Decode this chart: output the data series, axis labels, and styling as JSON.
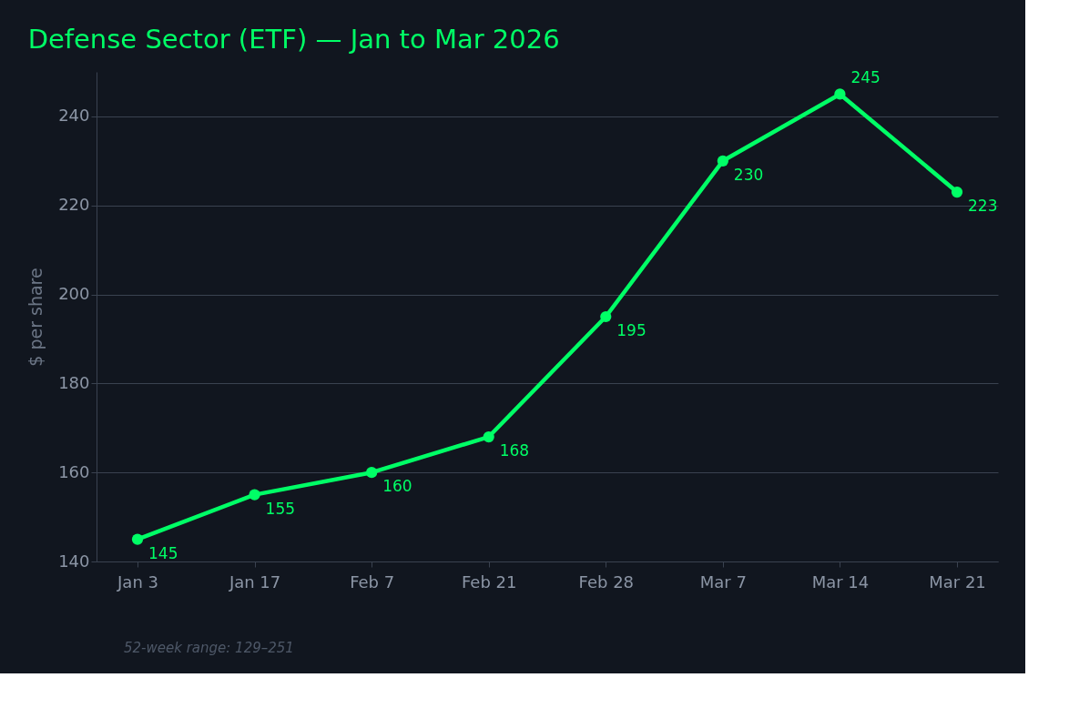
{
  "chart_data": {
    "type": "line",
    "title": "Defense Sector (ETF) — Jan to Mar 2026",
    "ylabel": "$ per share",
    "categories": [
      "Jan 3",
      "Jan 17",
      "Feb 7",
      "Feb 21",
      "Feb 28",
      "Mar 7",
      "Mar 14",
      "Mar 21"
    ],
    "series": [
      {
        "color": "#00ff66",
        "values": [
          145,
          155,
          160,
          168,
          195,
          230,
          245,
          223
        ]
      }
    ],
    "ylim": [
      140,
      250
    ],
    "yticks": [
      140,
      160,
      180,
      200,
      220,
      240
    ],
    "grid": "y",
    "data_labels": true,
    "marker": "circle",
    "line_style": "solid",
    "annotations": [
      "52-week range: 129–251"
    ]
  }
}
